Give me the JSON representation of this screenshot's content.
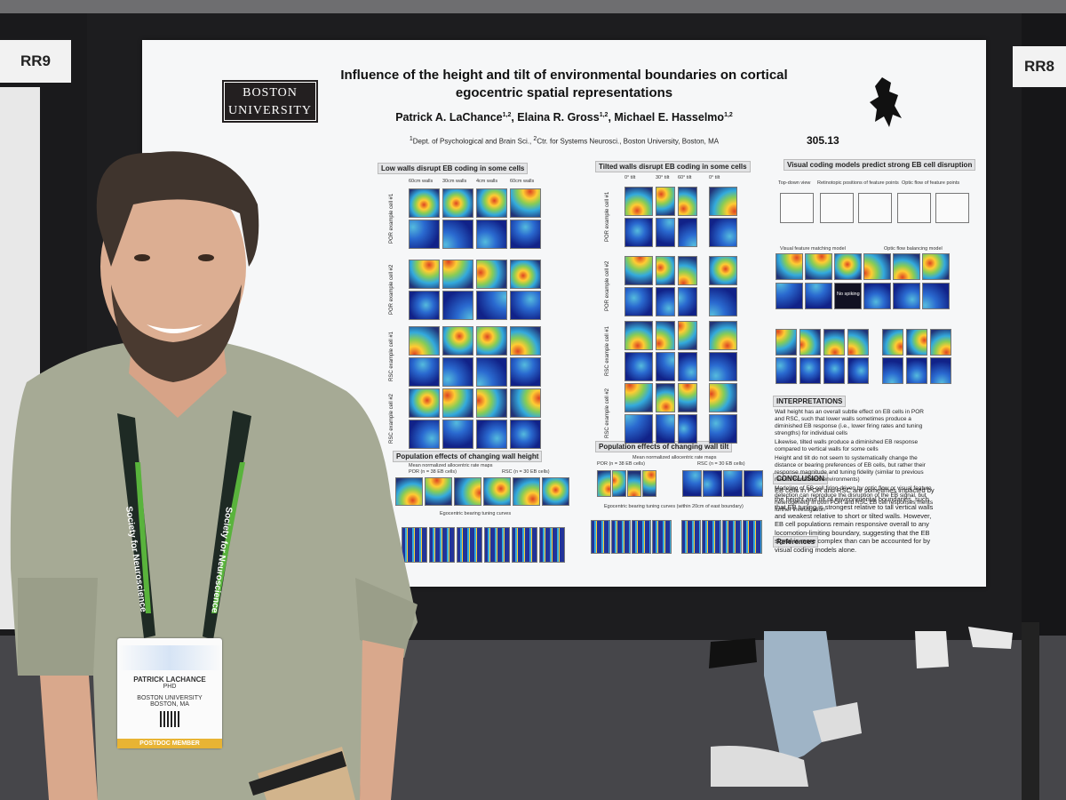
{
  "boards": {
    "left": "RR9",
    "right": "RR8"
  },
  "poster": {
    "logo": [
      "BOSTON",
      "UNIVERSITY"
    ],
    "title_lines": [
      "Influence of the height and tilt of environmental boundaries on cortical",
      "egocentric spatial representations"
    ],
    "authors": [
      {
        "name": "Patrick A. LaChance",
        "sup": "1,2",
        "sep": ", "
      },
      {
        "name": "Elaina R. Gross",
        "sup": "1,2",
        "sep": ", "
      },
      {
        "name": "Michael E. Hasselmo",
        "sup": "1,2",
        "sep": ""
      }
    ],
    "affiliation": [
      {
        "sup": "1",
        "text": "Dept. of Psychological and Brain Sci., "
      },
      {
        "sup": "2",
        "text": "Ctr. for Systems Neurosci., Boston University, Boston, MA"
      }
    ],
    "number": "305.13",
    "height_panel": {
      "heading": "Low walls disrupt EB coding in some cells",
      "columns": [
        "60cm walls",
        "30cm walls",
        "4cm walls",
        "60cm walls"
      ],
      "rows": [
        "POR example cell #1",
        "POR example cell #2",
        "RSC example cell #1",
        "RSC example cell #2"
      ]
    },
    "tilt_panel": {
      "heading": "Tilted walls disrupt EB coding in some cells",
      "columns": [
        "0° tilt",
        "30° tilt",
        "60° tilt",
        "0° tilt"
      ],
      "rows": [
        "POR example cell #1",
        "POR example cell #2",
        "RSC example cell #1",
        "RSC example cell #2"
      ]
    },
    "model_panel": {
      "heading": "Visual coding models predict strong EB cell disruption",
      "labels": [
        "Top-down view",
        "Retinotopic positions of feature points",
        "Optic flow of feature points"
      ],
      "models": [
        "Visual feature matching model",
        "Optic flow balancing model"
      ],
      "no_spiking": "No spiking"
    },
    "pop_height": {
      "heading": "Population effects of changing wall height",
      "maps": "Mean normalized allocentric rate maps",
      "groups": [
        "POR (n = 38 EB cells)",
        "RSC (n = 30 EB cells)"
      ],
      "curves": "Egocentric bearing tuning curves"
    },
    "pop_tilt": {
      "heading": "Population effects of changing wall tilt",
      "maps": "Mean normalized allocentric rate maps",
      "groups": [
        "POR (n = 38 EB cells)",
        "RSC (n = 30 EB cells)"
      ],
      "curves": "Egocentric bearing tuning curves (within 20cm of east boundary)"
    },
    "interpretations": {
      "heading": "INTERPRETATIONS",
      "bullets": [
        "Wall height has an overall subtle effect on EB cells in POR and RSC, such that lower walls sometimes produce a diminished EB response (i.e., lower firing rates and tuning strengths) for individual cells",
        "Likewise, tilted walls produce a diminished EB response compared to vertical walls for some cells",
        "Height and tilt do not seem to systematically change the distance or bearing preferences of EB cells, but rather their response magnitude and tuning fidelity (similar to previous results in wall-less environments)",
        "Modeling of EB cell firing driven by optic flow or visual feature detection can reproduce the disruption of the EB signal, but heterogeneity in both POR and RSC EB cell responses merits further investigation"
      ]
    },
    "conclusion": {
      "heading": "CONCLUSION",
      "text": "EB cells in POR and RSC are sometimes impacted by the height and tilt of environmental boundaries, such that EB tuning is strongest relative to tall vertical walls and weakest relative to short or tilted walls. However, EB cell populations remain responsive overall to any locomotion-limiting boundary, suggesting that the EB signal is more complex than can be accounted for by visual coding models alone."
    },
    "references": "References"
  },
  "badge": {
    "name": "PATRICK LACHANCE",
    "degree": "PHD",
    "org": "BOSTON UNIVERSITY",
    "city": "BOSTON, MA",
    "member": "POSTDOC MEMBER"
  },
  "lanyard": "Society for Neuroscience"
}
